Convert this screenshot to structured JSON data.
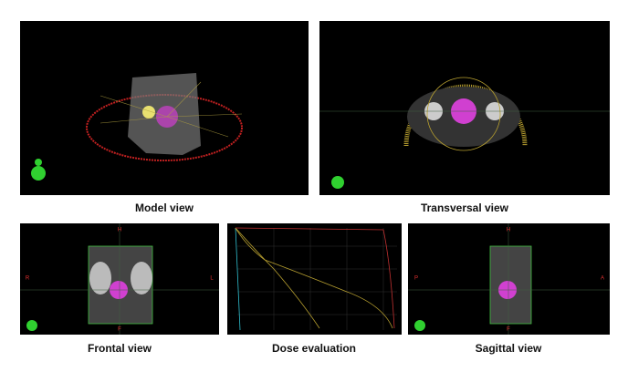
{
  "panels": [
    {
      "caption": "Model view"
    },
    {
      "caption": "Transversal view"
    },
    {
      "caption": "Frontal view",
      "labels": [
        "H",
        "F",
        "R",
        "L"
      ]
    },
    {
      "caption": "Dose evaluation"
    },
    {
      "caption": "Sagittal view",
      "labels": [
        "H",
        "F",
        "P",
        "A"
      ]
    }
  ]
}
